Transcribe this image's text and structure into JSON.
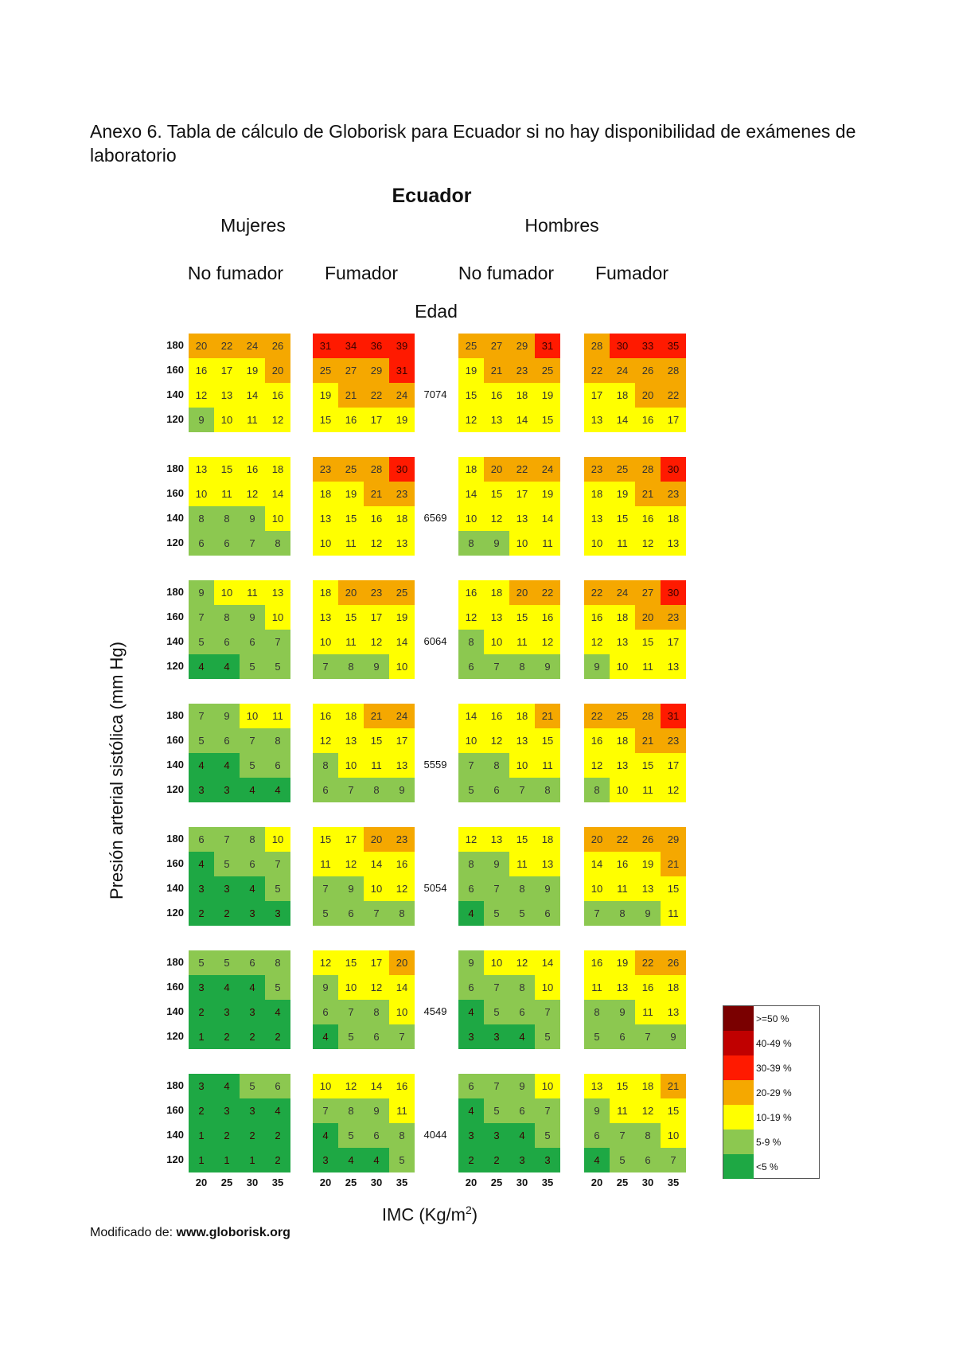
{
  "doc_title": "Anexo 6. Tabla de cálculo de Globorisk para Ecuador si no hay disponibilidad de exámenes de laboratorio",
  "country": "Ecuador",
  "sex_headers": [
    "Mujeres",
    "Hombres"
  ],
  "smoking_headers": [
    "No fumador",
    "Fumador",
    "No fumador",
    "Fumador"
  ],
  "age_header": "Edad",
  "y_axis_label": "Presión arterial sistólica (mm Hg)",
  "x_axis_label": "IMC (Kg/m",
  "x_axis_sup": "2",
  "x_axis_close": ")",
  "source_prefix": "Modificado de:",
  "source_url": "www.globorisk.org",
  "sbp_values": [
    "180",
    "160",
    "140",
    "120"
  ],
  "bmi_values": [
    "20",
    "25",
    "30",
    "35"
  ],
  "age_groups": [
    "7074",
    "6569",
    "6064",
    "5559",
    "5054",
    "4549",
    "4044"
  ],
  "legend": [
    {
      "label": ">=50 %",
      "color": "#7a0000"
    },
    {
      "label": "40-49 %",
      "color": "#c00000"
    },
    {
      "label": "30-39 %",
      "color": "#ff1a00"
    },
    {
      "label": "20-29 %",
      "color": "#f5a800"
    },
    {
      "label": "10-19 %",
      "color": "#ffff00"
    },
    {
      "label": "5-9 %",
      "color": "#8cc850"
    },
    {
      "label": "<5 %",
      "color": "#1ea844"
    }
  ],
  "risk_tables": [
    {
      "age": "7074",
      "panels": [
        [
          [
            "20",
            "22",
            "24",
            "26"
          ],
          [
            "16",
            "17",
            "19",
            "20"
          ],
          [
            "12",
            "13",
            "14",
            "16"
          ],
          [
            "9",
            "10",
            "11",
            "12"
          ]
        ],
        [
          [
            "31",
            "34",
            "36",
            "39"
          ],
          [
            "25",
            "27",
            "29",
            "31"
          ],
          [
            "19",
            "21",
            "22",
            "24"
          ],
          [
            "15",
            "16",
            "17",
            "19"
          ]
        ],
        [
          [
            "25",
            "27",
            "29",
            "31"
          ],
          [
            "19",
            "21",
            "23",
            "25"
          ],
          [
            "15",
            "16",
            "18",
            "19"
          ],
          [
            "12",
            "13",
            "14",
            "15"
          ]
        ],
        [
          [
            "28",
            "30",
            "33",
            "35"
          ],
          [
            "22",
            "24",
            "26",
            "28"
          ],
          [
            "17",
            "18",
            "20",
            "22"
          ],
          [
            "13",
            "14",
            "16",
            "17"
          ]
        ]
      ]
    },
    {
      "age": "6569",
      "panels": [
        [
          [
            "13",
            "15",
            "16",
            "18"
          ],
          [
            "10",
            "11",
            "12",
            "14"
          ],
          [
            "8",
            "8",
            "9",
            "10"
          ],
          [
            "6",
            "6",
            "7",
            "8"
          ]
        ],
        [
          [
            "23",
            "25",
            "28",
            "30"
          ],
          [
            "18",
            "19",
            "21",
            "23"
          ],
          [
            "13",
            "15",
            "16",
            "18"
          ],
          [
            "10",
            "11",
            "12",
            "13"
          ]
        ],
        [
          [
            "18",
            "20",
            "22",
            "24"
          ],
          [
            "14",
            "15",
            "17",
            "19"
          ],
          [
            "10",
            "12",
            "13",
            "14"
          ],
          [
            "8",
            "9",
            "10",
            "11"
          ]
        ],
        [
          [
            "23",
            "25",
            "28",
            "30"
          ],
          [
            "18",
            "19",
            "21",
            "23"
          ],
          [
            "13",
            "15",
            "16",
            "18"
          ],
          [
            "10",
            "11",
            "12",
            "13"
          ]
        ]
      ]
    },
    {
      "age": "6064",
      "panels": [
        [
          [
            "9",
            "10",
            "11",
            "13"
          ],
          [
            "7",
            "8",
            "9",
            "10"
          ],
          [
            "5",
            "6",
            "6",
            "7"
          ],
          [
            "4",
            "4",
            "5",
            "5"
          ]
        ],
        [
          [
            "18",
            "20",
            "23",
            "25"
          ],
          [
            "13",
            "15",
            "17",
            "19"
          ],
          [
            "10",
            "11",
            "12",
            "14"
          ],
          [
            "7",
            "8",
            "9",
            "10"
          ]
        ],
        [
          [
            "16",
            "18",
            "20",
            "22"
          ],
          [
            "12",
            "13",
            "15",
            "16"
          ],
          [
            "8",
            "10",
            "11",
            "12"
          ],
          [
            "6",
            "7",
            "8",
            "9"
          ]
        ],
        [
          [
            "22",
            "24",
            "27",
            "30"
          ],
          [
            "16",
            "18",
            "20",
            "23"
          ],
          [
            "12",
            "13",
            "15",
            "17"
          ],
          [
            "9",
            "10",
            "11",
            "13"
          ]
        ]
      ]
    },
    {
      "age": "5559",
      "panels": [
        [
          [
            "7",
            "9",
            "10",
            "11"
          ],
          [
            "5",
            "6",
            "7",
            "8"
          ],
          [
            "4",
            "4",
            "5",
            "6"
          ],
          [
            "3",
            "3",
            "4",
            "4"
          ]
        ],
        [
          [
            "16",
            "18",
            "21",
            "24"
          ],
          [
            "12",
            "13",
            "15",
            "17"
          ],
          [
            "8",
            "10",
            "11",
            "13"
          ],
          [
            "6",
            "7",
            "8",
            "9"
          ]
        ],
        [
          [
            "14",
            "16",
            "18",
            "21"
          ],
          [
            "10",
            "12",
            "13",
            "15"
          ],
          [
            "7",
            "8",
            "10",
            "11"
          ],
          [
            "5",
            "6",
            "7",
            "8"
          ]
        ],
        [
          [
            "22",
            "25",
            "28",
            "31"
          ],
          [
            "16",
            "18",
            "21",
            "23"
          ],
          [
            "12",
            "13",
            "15",
            "17"
          ],
          [
            "8",
            "10",
            "11",
            "12"
          ]
        ]
      ]
    },
    {
      "age": "5054",
      "panels": [
        [
          [
            "6",
            "7",
            "8",
            "10"
          ],
          [
            "4",
            "5",
            "6",
            "7"
          ],
          [
            "3",
            "3",
            "4",
            "5"
          ],
          [
            "2",
            "2",
            "3",
            "3"
          ]
        ],
        [
          [
            "15",
            "17",
            "20",
            "23"
          ],
          [
            "11",
            "12",
            "14",
            "16"
          ],
          [
            "7",
            "9",
            "10",
            "12"
          ],
          [
            "5",
            "6",
            "7",
            "8"
          ]
        ],
        [
          [
            "12",
            "13",
            "15",
            "18"
          ],
          [
            "8",
            "9",
            "11",
            "13"
          ],
          [
            "6",
            "7",
            "8",
            "9"
          ],
          [
            "4",
            "5",
            "5",
            "6"
          ]
        ],
        [
          [
            "20",
            "22",
            "26",
            "29"
          ],
          [
            "14",
            "16",
            "19",
            "21"
          ],
          [
            "10",
            "11",
            "13",
            "15"
          ],
          [
            "7",
            "8",
            "9",
            "11"
          ]
        ]
      ]
    },
    {
      "age": "4549",
      "panels": [
        [
          [
            "5",
            "5",
            "6",
            "8"
          ],
          [
            "3",
            "4",
            "4",
            "5"
          ],
          [
            "2",
            "3",
            "3",
            "4"
          ],
          [
            "1",
            "2",
            "2",
            "2"
          ]
        ],
        [
          [
            "12",
            "15",
            "17",
            "20"
          ],
          [
            "9",
            "10",
            "12",
            "14"
          ],
          [
            "6",
            "7",
            "8",
            "10"
          ],
          [
            "4",
            "5",
            "6",
            "7"
          ]
        ],
        [
          [
            "9",
            "10",
            "12",
            "14"
          ],
          [
            "6",
            "7",
            "8",
            "10"
          ],
          [
            "4",
            "5",
            "6",
            "7"
          ],
          [
            "3",
            "3",
            "4",
            "5"
          ]
        ],
        [
          [
            "16",
            "19",
            "22",
            "26"
          ],
          [
            "11",
            "13",
            "16",
            "18"
          ],
          [
            "8",
            "9",
            "11",
            "13"
          ],
          [
            "5",
            "6",
            "7",
            "9"
          ]
        ]
      ]
    },
    {
      "age": "4044",
      "panels": [
        [
          [
            "3",
            "4",
            "5",
            "6"
          ],
          [
            "2",
            "3",
            "3",
            "4"
          ],
          [
            "1",
            "2",
            "2",
            "2"
          ],
          [
            "1",
            "1",
            "1",
            "2"
          ]
        ],
        [
          [
            "10",
            "12",
            "14",
            "16"
          ],
          [
            "7",
            "8",
            "9",
            "11"
          ],
          [
            "4",
            "5",
            "6",
            "8"
          ],
          [
            "3",
            "4",
            "4",
            "5"
          ]
        ],
        [
          [
            "6",
            "7",
            "9",
            "10"
          ],
          [
            "4",
            "5",
            "6",
            "7"
          ],
          [
            "3",
            "3",
            "4",
            "5"
          ],
          [
            "2",
            "2",
            "3",
            "3"
          ]
        ],
        [
          [
            "13",
            "15",
            "18",
            "21"
          ],
          [
            "9",
            "11",
            "12",
            "15"
          ],
          [
            "6",
            "7",
            "8",
            "10"
          ],
          [
            "4",
            "5",
            "6",
            "7"
          ]
        ]
      ]
    }
  ]
}
